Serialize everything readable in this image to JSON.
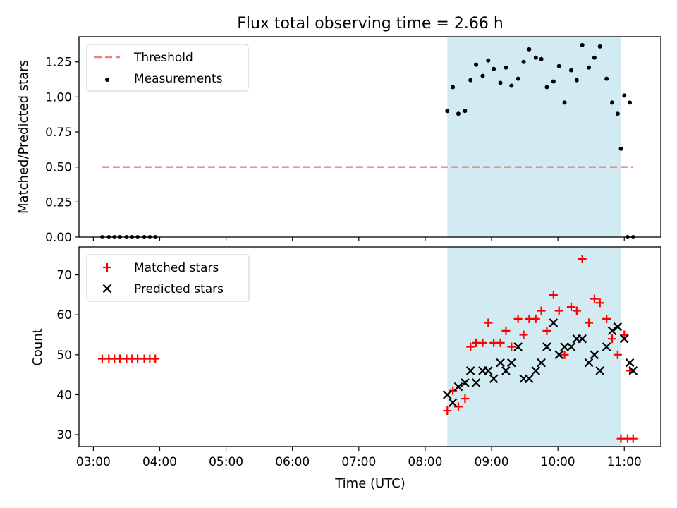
{
  "title": "Flux total observing time = 2.66 h",
  "x_axis": {
    "label": "Time (UTC)",
    "ticks": [
      "03:00",
      "04:00",
      "05:00",
      "06:00",
      "07:00",
      "08:00",
      "09:00",
      "10:00",
      "11:00"
    ]
  },
  "colors": {
    "threshold": "#f08080",
    "measurements": "#000000",
    "matched": "#ff0000",
    "predicted": "#000000",
    "span": "#add8e6"
  },
  "chart_data": [
    {
      "type": "scatter",
      "ylabel": "Matched/Predicted stars",
      "ylim": [
        0,
        1.43
      ],
      "yticks": [
        "0.00",
        "0.25",
        "0.50",
        "0.75",
        "1.00",
        "1.25"
      ],
      "xlim": [
        "02:47",
        "11:33"
      ],
      "legend_position": "top-left",
      "shaded_span": {
        "from": "08:20",
        "to": "10:57"
      },
      "threshold": {
        "name": "Threshold",
        "value": 0.5,
        "from": "03:08",
        "to": "11:08"
      },
      "series": [
        {
          "name": "Measurements",
          "points": [
            [
              "03:08",
              0
            ],
            [
              "03:14",
              0
            ],
            [
              "03:19",
              0
            ],
            [
              "03:24",
              0
            ],
            [
              "03:30",
              0
            ],
            [
              "03:35",
              0
            ],
            [
              "03:40",
              0
            ],
            [
              "03:46",
              0
            ],
            [
              "03:51",
              0
            ],
            [
              "03:56",
              0
            ],
            [
              "08:20",
              0.9
            ],
            [
              "08:25",
              1.07
            ],
            [
              "08:30",
              0.88
            ],
            [
              "08:36",
              0.9
            ],
            [
              "08:41",
              1.12
            ],
            [
              "08:46",
              1.23
            ],
            [
              "08:52",
              1.15
            ],
            [
              "08:57",
              1.26
            ],
            [
              "09:02",
              1.2
            ],
            [
              "09:08",
              1.1
            ],
            [
              "09:13",
              1.21
            ],
            [
              "09:18",
              1.08
            ],
            [
              "09:24",
              1.13
            ],
            [
              "09:29",
              1.25
            ],
            [
              "09:34",
              1.34
            ],
            [
              "09:40",
              1.28
            ],
            [
              "09:45",
              1.27
            ],
            [
              "09:50",
              1.07
            ],
            [
              "09:56",
              1.11
            ],
            [
              "10:01",
              1.22
            ],
            [
              "10:06",
              0.96
            ],
            [
              "10:12",
              1.19
            ],
            [
              "10:17",
              1.12
            ],
            [
              "10:22",
              1.37
            ],
            [
              "10:28",
              1.21
            ],
            [
              "10:33",
              1.28
            ],
            [
              "10:38",
              1.36
            ],
            [
              "10:44",
              1.13
            ],
            [
              "10:49",
              0.96
            ],
            [
              "10:54",
              0.88
            ],
            [
              "11:00",
              1.01
            ],
            [
              "11:05",
              0.96
            ],
            [
              "10:57",
              0.63
            ],
            [
              "11:03",
              0
            ],
            [
              "11:08",
              0
            ]
          ]
        }
      ]
    },
    {
      "type": "scatter",
      "ylabel": "Count",
      "ylim": [
        27,
        77
      ],
      "yticks": [
        "30",
        "40",
        "50",
        "60",
        "70"
      ],
      "xlim": [
        "02:47",
        "11:33"
      ],
      "legend_position": "top-left",
      "shaded_span": {
        "from": "08:20",
        "to": "10:57"
      },
      "series": [
        {
          "name": "Matched stars",
          "marker": "+",
          "points": [
            [
              "03:08",
              49
            ],
            [
              "03:14",
              49
            ],
            [
              "03:19",
              49
            ],
            [
              "03:24",
              49
            ],
            [
              "03:30",
              49
            ],
            [
              "03:35",
              49
            ],
            [
              "03:40",
              49
            ],
            [
              "03:46",
              49
            ],
            [
              "03:51",
              49
            ],
            [
              "03:56",
              49
            ],
            [
              "08:20",
              36
            ],
            [
              "08:25",
              41
            ],
            [
              "08:30",
              37
            ],
            [
              "08:36",
              39
            ],
            [
              "08:41",
              52
            ],
            [
              "08:46",
              53
            ],
            [
              "08:52",
              53
            ],
            [
              "08:57",
              58
            ],
            [
              "09:02",
              53
            ],
            [
              "09:08",
              53
            ],
            [
              "09:13",
              56
            ],
            [
              "09:18",
              52
            ],
            [
              "09:24",
              59
            ],
            [
              "09:29",
              55
            ],
            [
              "09:34",
              59
            ],
            [
              "09:40",
              59
            ],
            [
              "09:45",
              61
            ],
            [
              "09:50",
              56
            ],
            [
              "09:56",
              65
            ],
            [
              "10:01",
              61
            ],
            [
              "10:06",
              50
            ],
            [
              "10:12",
              62
            ],
            [
              "10:17",
              61
            ],
            [
              "10:22",
              74
            ],
            [
              "10:28",
              58
            ],
            [
              "10:33",
              64
            ],
            [
              "10:38",
              63
            ],
            [
              "10:44",
              59
            ],
            [
              "10:49",
              54
            ],
            [
              "10:54",
              50
            ],
            [
              "11:00",
              55
            ],
            [
              "11:05",
              46
            ],
            [
              "10:57",
              29
            ],
            [
              "11:03",
              29
            ],
            [
              "11:08",
              29
            ]
          ]
        },
        {
          "name": "Predicted stars",
          "marker": "x",
          "points": [
            [
              "08:20",
              40
            ],
            [
              "08:25",
              38
            ],
            [
              "08:30",
              42
            ],
            [
              "08:36",
              43
            ],
            [
              "08:41",
              46
            ],
            [
              "08:46",
              43
            ],
            [
              "08:52",
              46
            ],
            [
              "08:57",
              46
            ],
            [
              "09:02",
              44
            ],
            [
              "09:08",
              48
            ],
            [
              "09:13",
              46
            ],
            [
              "09:18",
              48
            ],
            [
              "09:24",
              52
            ],
            [
              "09:29",
              44
            ],
            [
              "09:34",
              44
            ],
            [
              "09:40",
              46
            ],
            [
              "09:45",
              48
            ],
            [
              "09:50",
              52
            ],
            [
              "09:56",
              58
            ],
            [
              "10:01",
              50
            ],
            [
              "10:06",
              52
            ],
            [
              "10:12",
              52
            ],
            [
              "10:17",
              54
            ],
            [
              "10:22",
              54
            ],
            [
              "10:28",
              48
            ],
            [
              "10:33",
              50
            ],
            [
              "10:38",
              46
            ],
            [
              "10:44",
              52
            ],
            [
              "10:49",
              56
            ],
            [
              "10:54",
              57
            ],
            [
              "11:00",
              54
            ],
            [
              "11:05",
              48
            ],
            [
              "11:08",
              46
            ]
          ]
        }
      ]
    }
  ]
}
